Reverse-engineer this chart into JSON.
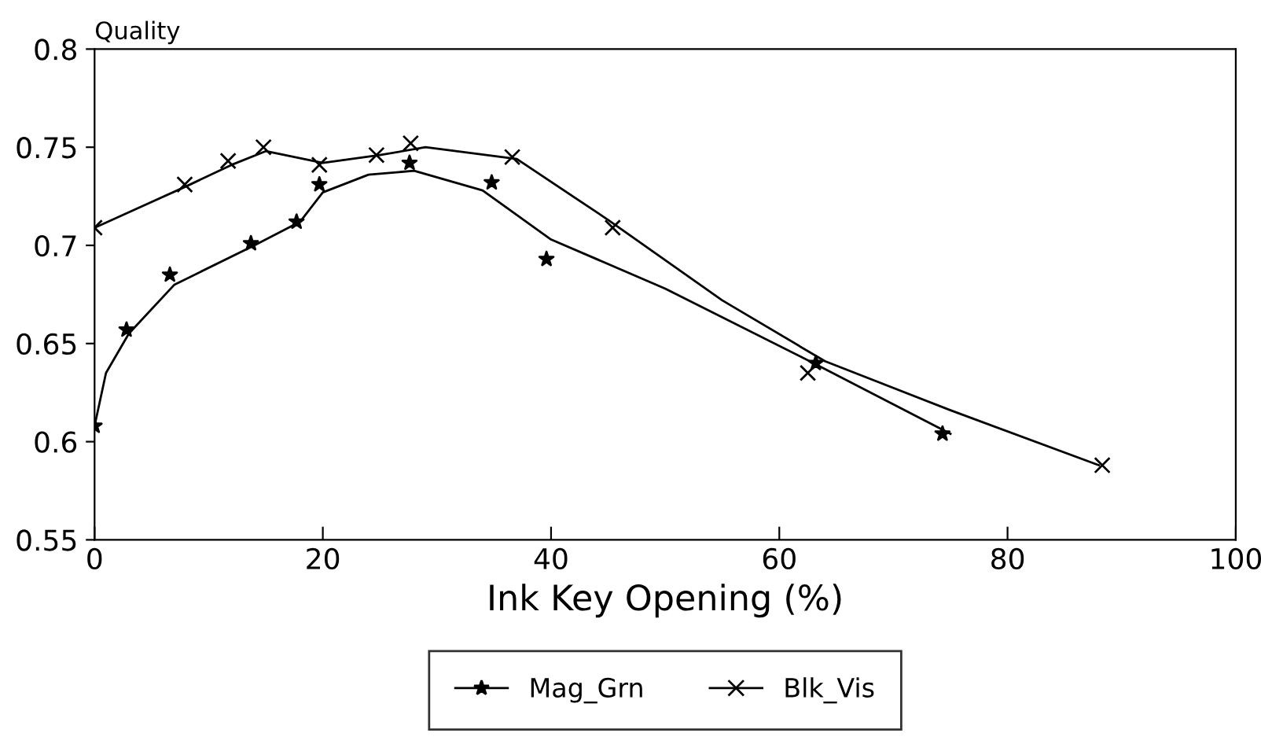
{
  "chart_data": {
    "type": "scatter",
    "ylabel": "Quality",
    "xlabel": "Ink Key Opening (%)",
    "xlim": [
      0,
      100
    ],
    "xticks": [
      0,
      20,
      40,
      60,
      80,
      100
    ],
    "ylim": [
      0.55,
      0.8
    ],
    "yticks": [
      0.55,
      0.6,
      0.65,
      0.7,
      0.75,
      0.8
    ],
    "grid": false,
    "legend": "bottom",
    "series": [
      {
        "name": "Mag_Grn",
        "color": "#000000",
        "marker": "star",
        "x": [
          0,
          2.8,
          6.6,
          13.7,
          17.7,
          19.7,
          27.6,
          34.8,
          39.6,
          63.2,
          74.3
        ],
        "values": [
          0.608,
          0.657,
          0.685,
          0.701,
          0.712,
          0.731,
          0.742,
          0.732,
          0.693,
          0.64,
          0.604
        ]
      },
      {
        "name": "Blk_Vis",
        "color": "#000000",
        "marker": "cross",
        "x": [
          0,
          7.9,
          11.7,
          14.8,
          19.7,
          24.7,
          27.7,
          36.6,
          45.4,
          62.5,
          88.3
        ],
        "values": [
          0.709,
          0.731,
          0.743,
          0.75,
          0.741,
          0.746,
          0.752,
          0.745,
          0.709,
          0.635,
          0.588
        ]
      },
      {
        "type": "line",
        "color": "#000000",
        "line_style": "solid",
        "x": [
          0,
          1,
          3,
          7,
          14,
          18,
          20,
          24,
          28,
          34,
          40,
          50,
          63,
          75
        ],
        "values": [
          0.608,
          0.635,
          0.655,
          0.68,
          0.7,
          0.712,
          0.727,
          0.736,
          0.738,
          0.728,
          0.703,
          0.678,
          0.64,
          0.604
        ]
      },
      {
        "type": "line",
        "color": "#000000",
        "line_style": "solid",
        "x": [
          0,
          8,
          12,
          15,
          20,
          25,
          29,
          37,
          45,
          55,
          64,
          75,
          88
        ],
        "values": [
          0.709,
          0.73,
          0.741,
          0.748,
          0.742,
          0.746,
          0.75,
          0.744,
          0.713,
          0.672,
          0.641,
          0.616,
          0.588
        ]
      }
    ]
  }
}
